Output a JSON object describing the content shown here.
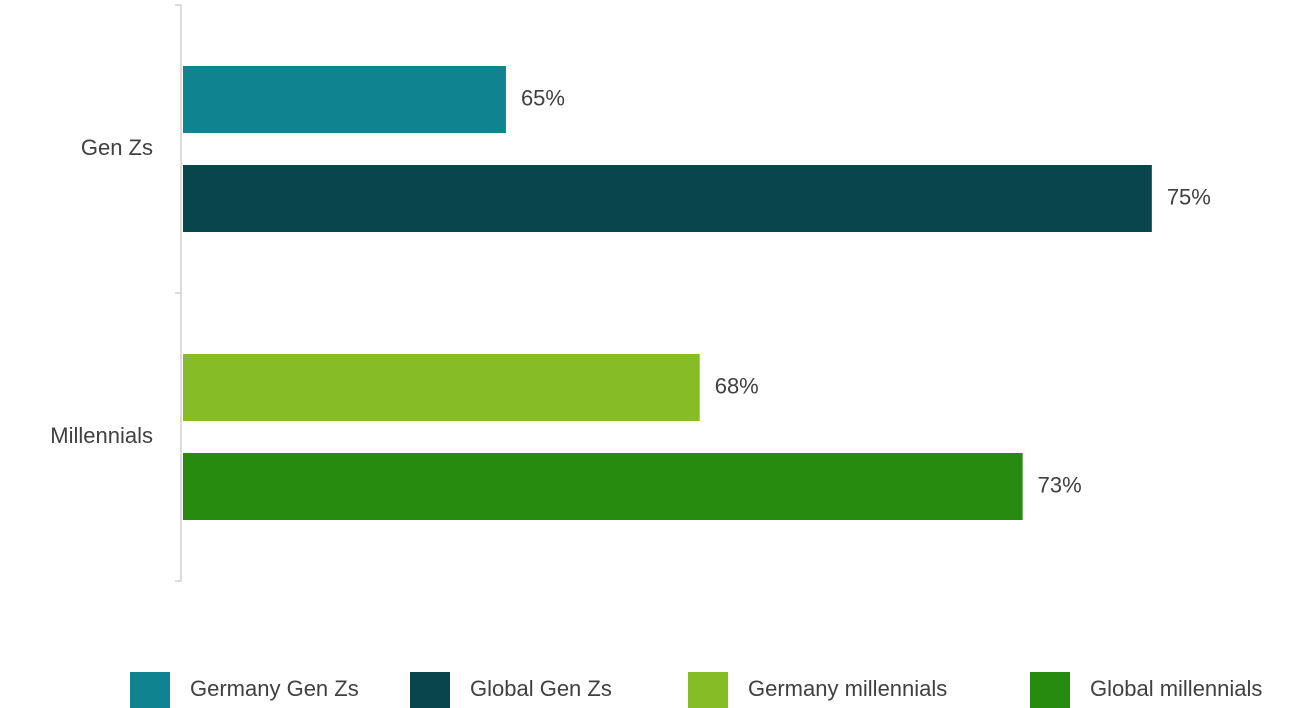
{
  "chart_data": {
    "type": "hbar",
    "categories": [
      "Gen Zs",
      "Millennials"
    ],
    "series": [
      {
        "name": "Germany Gen Zs",
        "color": "#0f8390",
        "values": [
          65,
          null
        ],
        "value_labels": [
          "65%",
          null
        ]
      },
      {
        "name": "Global Gen Zs",
        "color": "#08454d",
        "values": [
          75,
          null
        ],
        "value_labels": [
          "75%",
          null
        ]
      },
      {
        "name": "Germany millennials",
        "color": "#86bc25",
        "values": [
          null,
          68
        ],
        "value_labels": [
          null,
          "68%"
        ]
      },
      {
        "name": "Global millennials",
        "color": "#268b0e",
        "values": [
          null,
          73
        ],
        "value_labels": [
          null,
          "73%"
        ]
      }
    ],
    "xlim": [
      60,
      77
    ],
    "legend": "bottom"
  }
}
